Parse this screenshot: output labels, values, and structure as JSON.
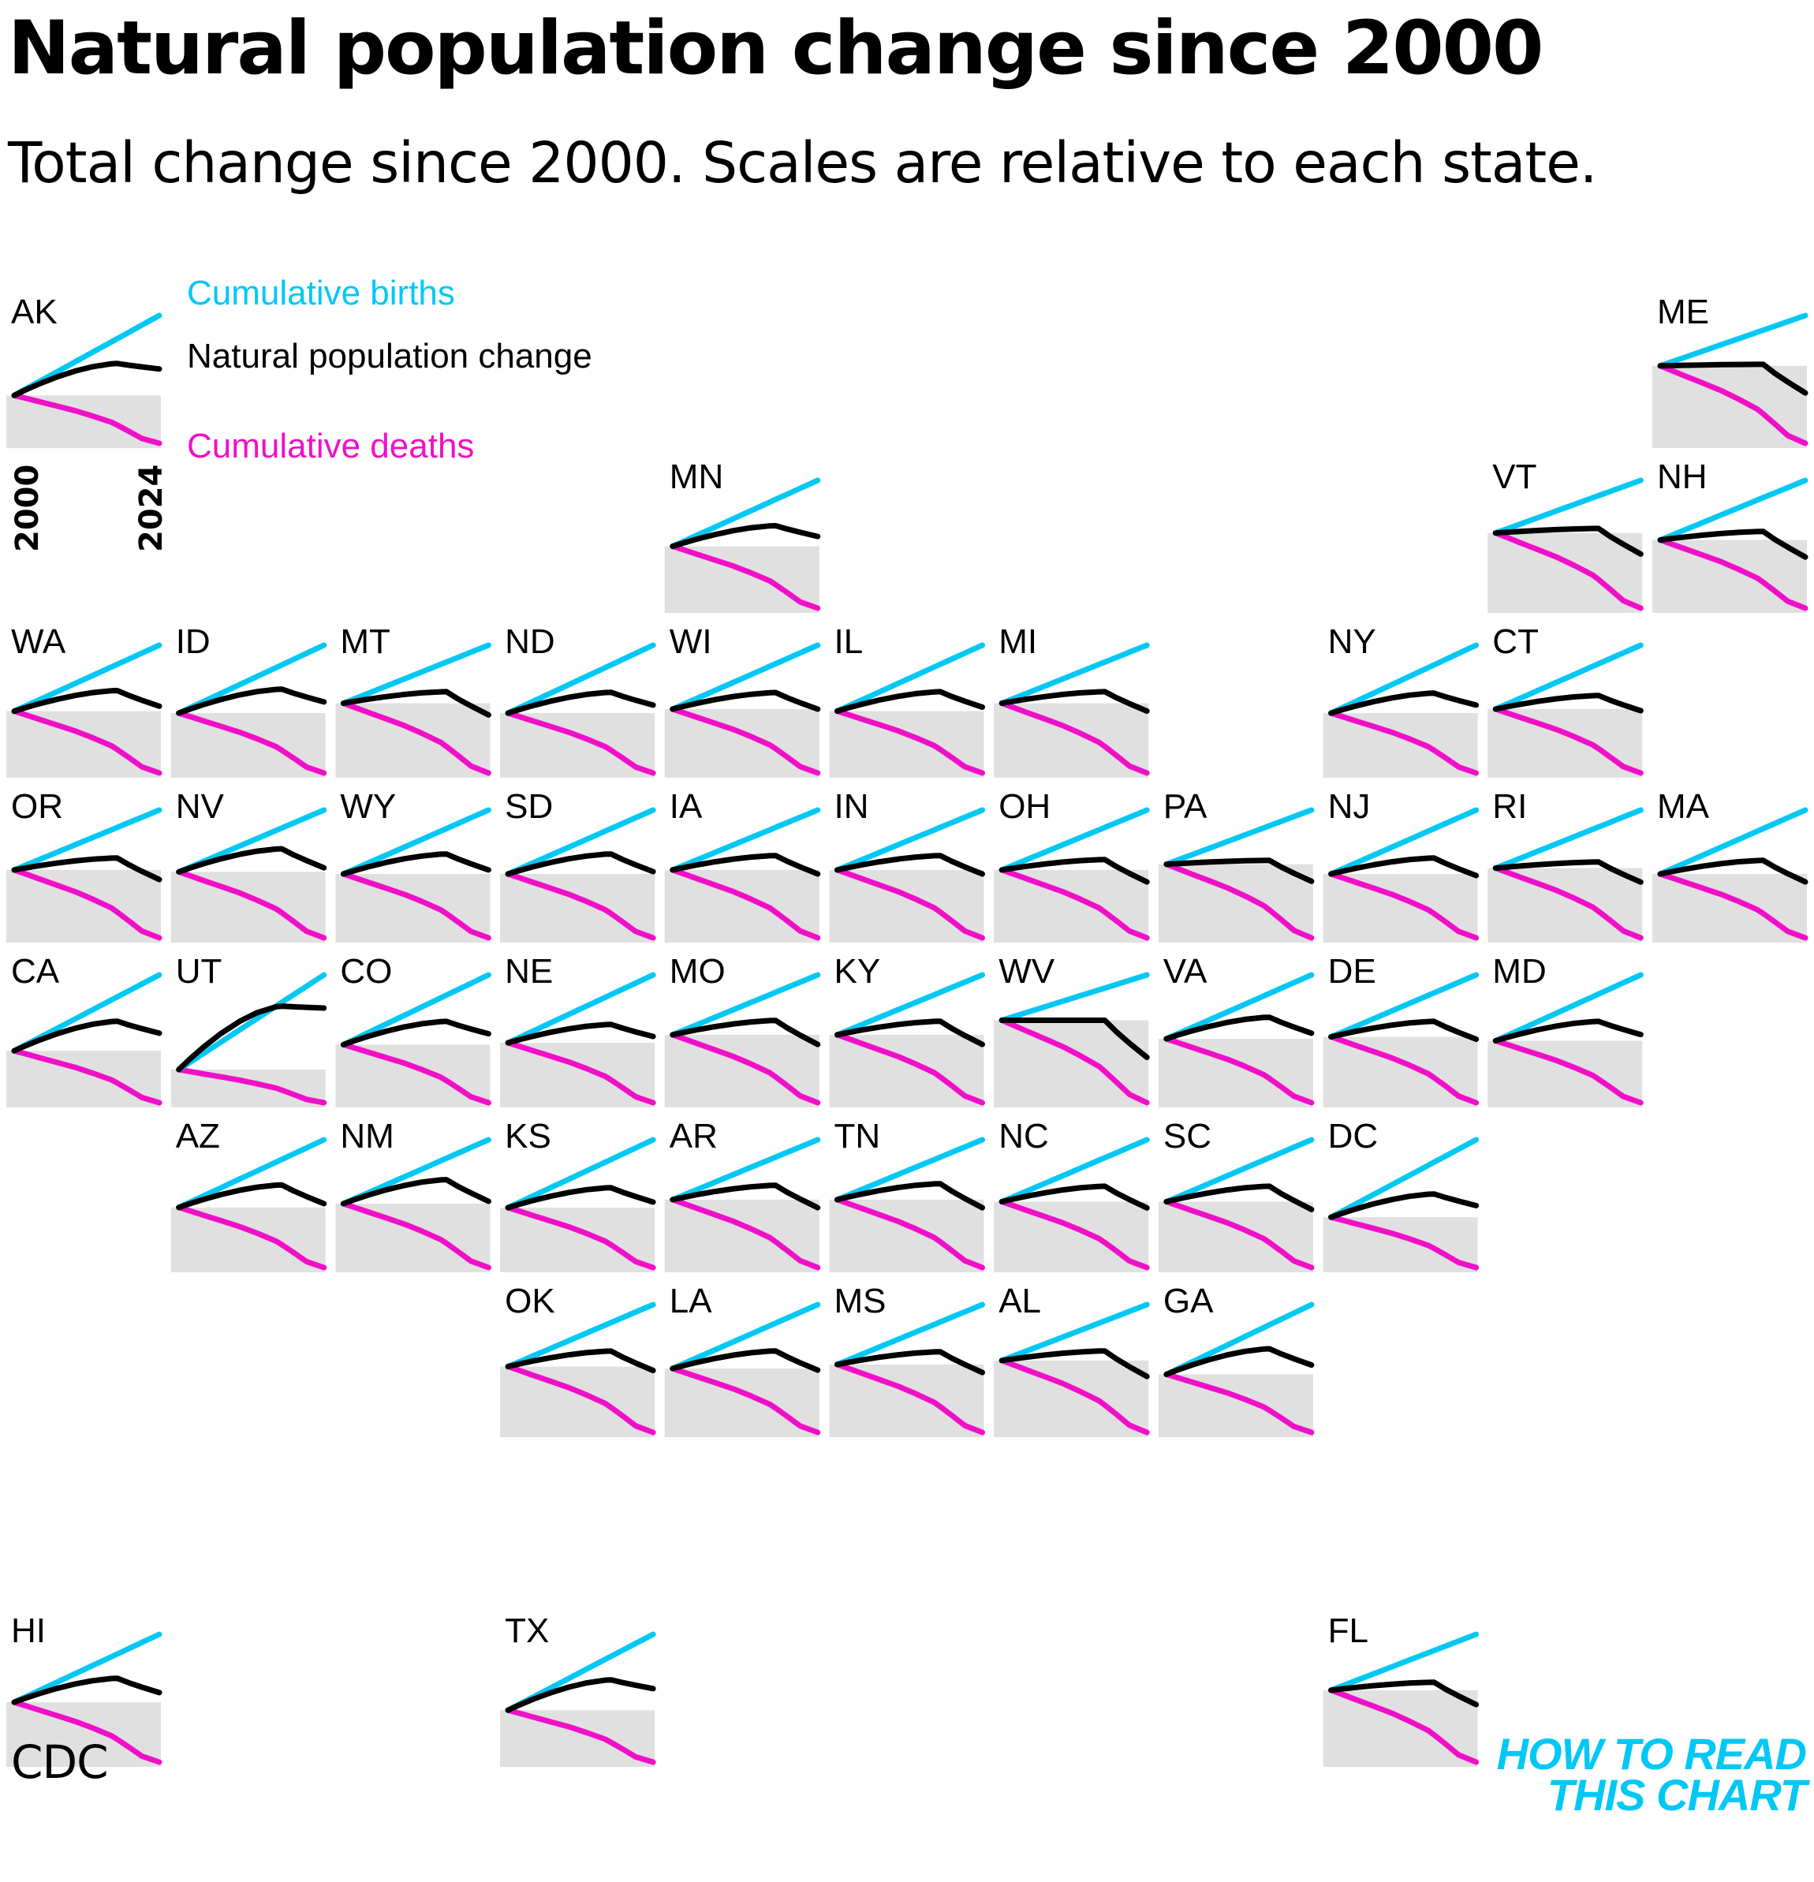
{
  "title": "Natural population change since 2000",
  "subtitle": "Total change since 2000. Scales are relative to each state.",
  "source": "CDC",
  "brand": {
    "line1": "HOW TO READ",
    "line2": "THIS CHART"
  },
  "colors": {
    "births": "#00c8f5",
    "natural": "#000000",
    "deaths": "#f010c8",
    "panel_bg": "#e0e0e0"
  },
  "chart_data": {
    "type": "line",
    "layout": "small-multiples tile map of US states",
    "x": {
      "start_year": "2000",
      "end_year": "2024"
    },
    "legend": [
      {
        "key": "births",
        "label": "Cumulative births"
      },
      {
        "key": "natural",
        "label": "Natural population change"
      },
      {
        "key": "deaths",
        "label": "Cumulative deaths"
      }
    ],
    "pattern_x": [
      0,
      0.08,
      0.17,
      0.29,
      0.42,
      0.54,
      0.67,
      0.71,
      0.79,
      0.88,
      1.0
    ],
    "death_shape": [
      0,
      0.06,
      0.13,
      0.22,
      0.32,
      0.43,
      0.56,
      0.62,
      0.75,
      0.9,
      1.0
    ],
    "states": [
      {
        "abbr": "AK",
        "col": 0,
        "row": 0,
        "births_end": 1.0,
        "deaths_end": 0.6,
        "peak": 0.4,
        "end": 0.33
      },
      {
        "abbr": "ME",
        "col": 10,
        "row": 0,
        "births_end": 0.65,
        "deaths_end": 1.0,
        "peak": 0.02,
        "end": -0.35
      },
      {
        "abbr": "MN",
        "col": 4,
        "row": 1,
        "births_end": 0.8,
        "deaths_end": 0.75,
        "peak": 0.25,
        "end": 0.12
      },
      {
        "abbr": "VT",
        "col": 9,
        "row": 1,
        "births_end": 0.7,
        "deaths_end": 1.0,
        "peak": 0.06,
        "end": -0.28
      },
      {
        "abbr": "NH",
        "col": 10,
        "row": 1,
        "births_end": 0.7,
        "deaths_end": 0.8,
        "peak": 0.1,
        "end": -0.2
      },
      {
        "abbr": "WA",
        "col": 0,
        "row": 2,
        "births_end": 0.8,
        "deaths_end": 0.75,
        "peak": 0.25,
        "end": 0.06
      },
      {
        "abbr": "ID",
        "col": 1,
        "row": 2,
        "births_end": 0.85,
        "deaths_end": 0.75,
        "peak": 0.3,
        "end": 0.14
      },
      {
        "abbr": "MT",
        "col": 2,
        "row": 2,
        "births_end": 0.75,
        "deaths_end": 0.9,
        "peak": 0.15,
        "end": -0.15
      },
      {
        "abbr": "ND",
        "col": 3,
        "row": 2,
        "births_end": 0.85,
        "deaths_end": 0.75,
        "peak": 0.26,
        "end": 0.1
      },
      {
        "abbr": "WI",
        "col": 4,
        "row": 2,
        "births_end": 0.85,
        "deaths_end": 0.85,
        "peak": 0.22,
        "end": 0.0
      },
      {
        "abbr": "IL",
        "col": 5,
        "row": 2,
        "births_end": 0.85,
        "deaths_end": 0.8,
        "peak": 0.25,
        "end": 0.05
      },
      {
        "abbr": "MI",
        "col": 6,
        "row": 2,
        "births_end": 0.75,
        "deaths_end": 0.9,
        "peak": 0.15,
        "end": -0.1
      },
      {
        "abbr": "NY",
        "col": 8,
        "row": 2,
        "births_end": 0.85,
        "deaths_end": 0.75,
        "peak": 0.25,
        "end": 0.1
      },
      {
        "abbr": "CT",
        "col": 9,
        "row": 2,
        "births_end": 0.8,
        "deaths_end": 0.8,
        "peak": 0.17,
        "end": -0.02
      },
      {
        "abbr": "OR",
        "col": 0,
        "row": 3,
        "births_end": 0.75,
        "deaths_end": 0.85,
        "peak": 0.15,
        "end": -0.12
      },
      {
        "abbr": "NV",
        "col": 1,
        "row": 3,
        "births_end": 0.75,
        "deaths_end": 0.8,
        "peak": 0.28,
        "end": 0.05
      },
      {
        "abbr": "WY",
        "col": 2,
        "row": 3,
        "births_end": 0.8,
        "deaths_end": 0.8,
        "peak": 0.25,
        "end": 0.05
      },
      {
        "abbr": "SD",
        "col": 3,
        "row": 3,
        "births_end": 0.8,
        "deaths_end": 0.8,
        "peak": 0.25,
        "end": 0.03
      },
      {
        "abbr": "IA",
        "col": 4,
        "row": 3,
        "births_end": 0.75,
        "deaths_end": 0.85,
        "peak": 0.18,
        "end": -0.05
      },
      {
        "abbr": "IN",
        "col": 5,
        "row": 3,
        "births_end": 0.75,
        "deaths_end": 0.85,
        "peak": 0.18,
        "end": -0.05
      },
      {
        "abbr": "OH",
        "col": 6,
        "row": 3,
        "births_end": 0.75,
        "deaths_end": 0.85,
        "peak": 0.13,
        "end": -0.15
      },
      {
        "abbr": "PA",
        "col": 7,
        "row": 3,
        "births_end": 0.7,
        "deaths_end": 0.95,
        "peak": 0.05,
        "end": -0.22
      },
      {
        "abbr": "NJ",
        "col": 8,
        "row": 3,
        "births_end": 0.8,
        "deaths_end": 0.8,
        "peak": 0.2,
        "end": -0.02
      },
      {
        "abbr": "RI",
        "col": 9,
        "row": 3,
        "births_end": 0.75,
        "deaths_end": 0.9,
        "peak": 0.08,
        "end": -0.18
      },
      {
        "abbr": "MA",
        "col": 10,
        "row": 3,
        "births_end": 0.8,
        "deaths_end": 0.8,
        "peak": 0.17,
        "end": -0.1
      },
      {
        "abbr": "CA",
        "col": 0,
        "row": 4,
        "births_end": 0.95,
        "deaths_end": 0.65,
        "peak": 0.37,
        "end": 0.22
      },
      {
        "abbr": "UT",
        "col": 1,
        "row": 4,
        "births_end": 1.0,
        "deaths_end": 0.35,
        "peak": 0.67,
        "end": 0.65
      },
      {
        "abbr": "CO",
        "col": 2,
        "row": 4,
        "births_end": 0.9,
        "deaths_end": 0.75,
        "peak": 0.3,
        "end": 0.14
      },
      {
        "abbr": "NE",
        "col": 3,
        "row": 4,
        "births_end": 0.85,
        "deaths_end": 0.75,
        "peak": 0.23,
        "end": 0.08
      },
      {
        "abbr": "MO",
        "col": 4,
        "row": 4,
        "births_end": 0.75,
        "deaths_end": 0.85,
        "peak": 0.18,
        "end": -0.12
      },
      {
        "abbr": "KY",
        "col": 5,
        "row": 4,
        "births_end": 0.75,
        "deaths_end": 0.85,
        "peak": 0.17,
        "end": -0.12
      },
      {
        "abbr": "WV",
        "col": 6,
        "row": 4,
        "births_end": 0.55,
        "deaths_end": 1.0,
        "peak": 0.0,
        "end": -0.45
      },
      {
        "abbr": "VA",
        "col": 7,
        "row": 4,
        "births_end": 0.8,
        "deaths_end": 0.8,
        "peak": 0.27,
        "end": 0.07
      },
      {
        "abbr": "DE",
        "col": 8,
        "row": 4,
        "births_end": 0.8,
        "deaths_end": 0.85,
        "peak": 0.2,
        "end": -0.03
      },
      {
        "abbr": "MD",
        "col": 9,
        "row": 4,
        "births_end": 0.85,
        "deaths_end": 0.8,
        "peak": 0.25,
        "end": 0.08
      },
      {
        "abbr": "AZ",
        "col": 1,
        "row": 5,
        "births_end": 0.9,
        "deaths_end": 0.8,
        "peak": 0.3,
        "end": 0.05
      },
      {
        "abbr": "NM",
        "col": 2,
        "row": 5,
        "births_end": 0.8,
        "deaths_end": 0.8,
        "peak": 0.3,
        "end": 0.03
      },
      {
        "abbr": "KS",
        "col": 3,
        "row": 5,
        "births_end": 0.85,
        "deaths_end": 0.75,
        "peak": 0.25,
        "end": 0.07
      },
      {
        "abbr": "AR",
        "col": 4,
        "row": 5,
        "births_end": 0.75,
        "deaths_end": 0.85,
        "peak": 0.18,
        "end": -0.1
      },
      {
        "abbr": "TN",
        "col": 5,
        "row": 5,
        "births_end": 0.75,
        "deaths_end": 0.85,
        "peak": 0.2,
        "end": -0.1
      },
      {
        "abbr": "NC",
        "col": 6,
        "row": 5,
        "births_end": 0.8,
        "deaths_end": 0.85,
        "peak": 0.2,
        "end": -0.08
      },
      {
        "abbr": "SC",
        "col": 7,
        "row": 5,
        "births_end": 0.8,
        "deaths_end": 0.85,
        "peak": 0.2,
        "end": -0.1
      },
      {
        "abbr": "DC",
        "col": 8,
        "row": 5,
        "births_end": 1.0,
        "deaths_end": 0.65,
        "peak": 0.3,
        "end": 0.15
      },
      {
        "abbr": "OK",
        "col": 3,
        "row": 6,
        "births_end": 0.8,
        "deaths_end": 0.85,
        "peak": 0.2,
        "end": -0.05
      },
      {
        "abbr": "LA",
        "col": 4,
        "row": 6,
        "births_end": 0.8,
        "deaths_end": 0.8,
        "peak": 0.22,
        "end": -0.02
      },
      {
        "abbr": "MS",
        "col": 5,
        "row": 6,
        "births_end": 0.75,
        "deaths_end": 0.85,
        "peak": 0.16,
        "end": -0.1
      },
      {
        "abbr": "AL",
        "col": 6,
        "row": 6,
        "births_end": 0.7,
        "deaths_end": 0.9,
        "peak": 0.12,
        "end": -0.2
      },
      {
        "abbr": "GA",
        "col": 7,
        "row": 6,
        "births_end": 0.9,
        "deaths_end": 0.75,
        "peak": 0.33,
        "end": 0.12
      },
      {
        "abbr": "HI",
        "col": 0,
        "row": 8,
        "births_end": 0.85,
        "deaths_end": 0.75,
        "peak": 0.3,
        "end": 0.12
      },
      {
        "abbr": "TX",
        "col": 3,
        "row": 8,
        "births_end": 0.95,
        "deaths_end": 0.65,
        "peak": 0.38,
        "end": 0.27
      },
      {
        "abbr": "FL",
        "col": 8,
        "row": 8,
        "births_end": 0.7,
        "deaths_end": 0.9,
        "peak": 0.1,
        "end": -0.18
      }
    ]
  }
}
